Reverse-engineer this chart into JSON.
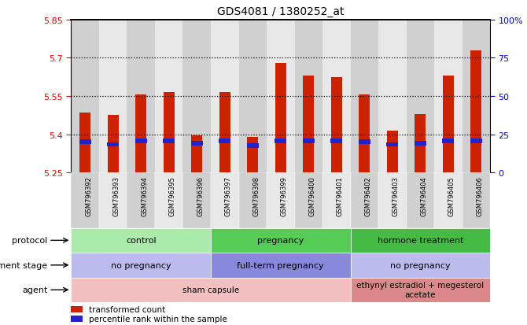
{
  "title": "GDS4081 / 1380252_at",
  "samples": [
    "GSM796392",
    "GSM796393",
    "GSM796394",
    "GSM796395",
    "GSM796396",
    "GSM796397",
    "GSM796398",
    "GSM796399",
    "GSM796400",
    "GSM796401",
    "GSM796402",
    "GSM796403",
    "GSM796404",
    "GSM796405",
    "GSM796406"
  ],
  "bar_values": [
    5.485,
    5.475,
    5.555,
    5.565,
    5.395,
    5.565,
    5.39,
    5.68,
    5.63,
    5.625,
    5.555,
    5.415,
    5.48,
    5.63,
    5.73
  ],
  "blue_values": [
    5.37,
    5.36,
    5.375,
    5.375,
    5.365,
    5.375,
    5.355,
    5.375,
    5.375,
    5.375,
    5.37,
    5.36,
    5.365,
    5.375,
    5.375
  ],
  "ymin": 5.25,
  "ymax": 5.85,
  "yticks": [
    5.25,
    5.4,
    5.55,
    5.7,
    5.85
  ],
  "ytick_labels": [
    "5.25",
    "5.4",
    "5.55",
    "5.7",
    "5.85"
  ],
  "right_ytick_labels": [
    "0",
    "25",
    "50",
    "75",
    "100%"
  ],
  "bar_color": "#cc2200",
  "blue_color": "#2222cc",
  "plot_bg": "#ffffff",
  "dotted_lines": [
    5.4,
    5.55,
    5.7
  ],
  "col_bg_odd": "#d0d0d0",
  "col_bg_even": "#e8e8e8",
  "protocol_groups": [
    {
      "label": "control",
      "start": 0,
      "end": 5,
      "color": "#aaeaaa"
    },
    {
      "label": "pregnancy",
      "start": 5,
      "end": 10,
      "color": "#55cc55"
    },
    {
      "label": "hormone treatment",
      "start": 10,
      "end": 15,
      "color": "#44bb44"
    }
  ],
  "dev_stage_groups": [
    {
      "label": "no pregnancy",
      "start": 0,
      "end": 5,
      "color": "#bbbbee"
    },
    {
      "label": "full-term pregnancy",
      "start": 5,
      "end": 10,
      "color": "#8888dd"
    },
    {
      "label": "no pregnancy",
      "start": 10,
      "end": 15,
      "color": "#bbbbee"
    }
  ],
  "agent_groups": [
    {
      "label": "sham capsule",
      "start": 0,
      "end": 10,
      "color": "#f2c0c0"
    },
    {
      "label": "ethynyl estradiol + megesterol\nacetate",
      "start": 10,
      "end": 15,
      "color": "#dd8888"
    }
  ],
  "row_labels_ordered": [
    "protocol",
    "development stage",
    "agent"
  ],
  "legend_items": [
    {
      "label": "transformed count",
      "color": "#cc2200"
    },
    {
      "label": "percentile rank within the sample",
      "color": "#2222cc"
    }
  ]
}
